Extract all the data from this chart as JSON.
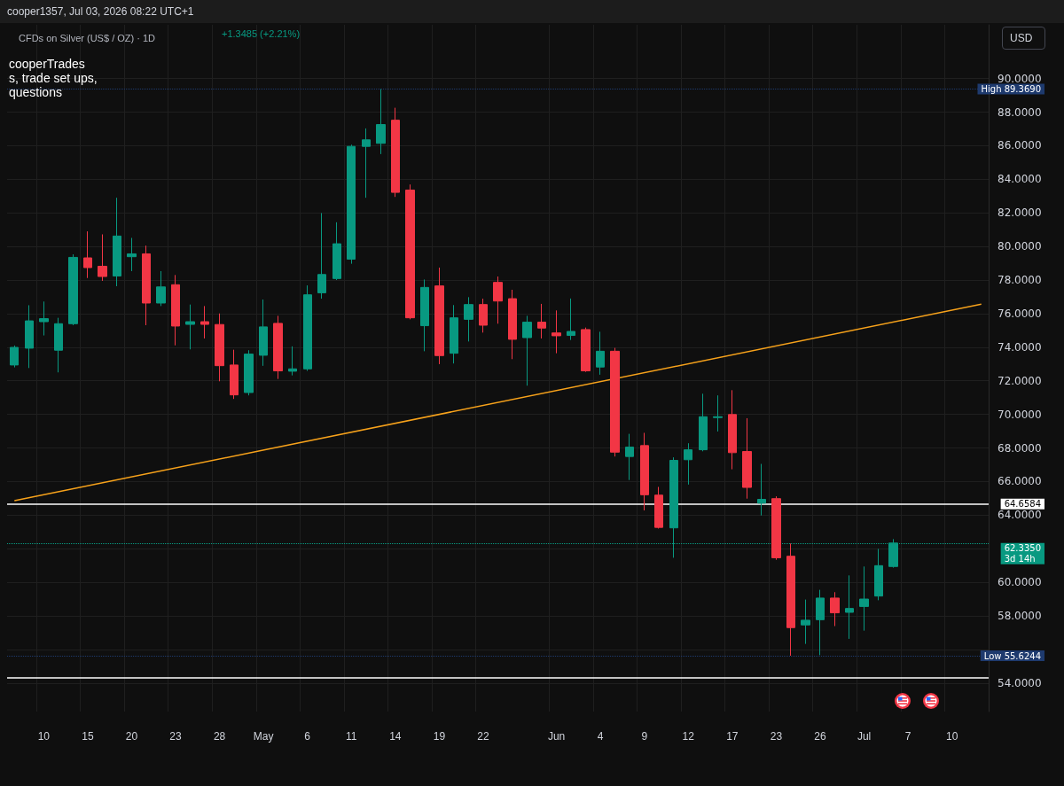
{
  "chart_data": {
    "type": "candlestick",
    "title": "CFDs on Silver (US$ / OZ) · 1D",
    "annotations": [
      "cooper1357, Jul 03, 2026 08:22 UTC+1",
      "+1.3485 (+2.21%)",
      "cooperTrades",
      "s, trade set ups,",
      "questions",
      "USD"
    ],
    "categories": [
      null,
      null,
      "10",
      null,
      null,
      "15",
      null,
      null,
      "20",
      null,
      null,
      "23",
      null,
      null,
      "28",
      null,
      null,
      "May",
      null,
      null,
      "6",
      null,
      null,
      "11",
      null,
      null,
      "14",
      null,
      null,
      "19",
      null,
      null,
      "22",
      null,
      null,
      null,
      null,
      "Jun",
      null,
      null,
      "4",
      null,
      null,
      "9",
      null,
      null,
      "12",
      null,
      null,
      "17",
      null,
      null,
      "23",
      null,
      null,
      "26",
      null,
      null,
      "Jul",
      null,
      null,
      "7",
      null,
      null,
      "10",
      null,
      null
    ],
    "series": [
      {
        "type": "candlestick",
        "ohlc": [
          [
            72.94,
            74.1,
            72.8,
            73.99
          ],
          [
            73.94,
            76.5,
            72.76,
            75.57
          ],
          [
            75.52,
            76.72,
            74.7,
            75.7
          ],
          [
            73.82,
            75.75,
            72.5,
            75.4
          ],
          [
            75.4,
            79.53,
            75.31,
            79.35
          ],
          [
            79.32,
            80.9,
            78.12,
            78.74
          ],
          [
            78.82,
            80.72,
            77.95,
            78.21
          ],
          [
            78.24,
            82.9,
            77.63,
            80.62
          ],
          [
            79.39,
            80.51,
            78.53,
            79.56
          ],
          [
            79.56,
            80.05,
            75.31,
            76.63
          ],
          [
            76.63,
            78.53,
            76.45,
            77.59
          ],
          [
            77.72,
            78.3,
            74.11,
            75.26
          ],
          [
            75.36,
            76.54,
            73.87,
            75.52
          ],
          [
            75.52,
            76.45,
            74.52,
            75.36
          ],
          [
            75.35,
            76.01,
            71.97,
            72.9
          ],
          [
            72.94,
            73.85,
            70.92,
            71.16
          ],
          [
            71.3,
            73.82,
            71.13,
            73.59
          ],
          [
            73.52,
            76.84,
            72.89,
            75.21
          ],
          [
            75.42,
            75.87,
            72.11,
            72.59
          ],
          [
            72.57,
            74.05,
            72.32,
            72.71
          ],
          [
            72.71,
            77.68,
            72.59,
            77.12
          ],
          [
            77.24,
            81.99,
            76.89,
            78.33
          ],
          [
            78.09,
            81.44,
            78.0,
            80.16
          ],
          [
            79.24,
            86.06,
            78.97,
            85.96
          ],
          [
            85.96,
            87.03,
            82.9,
            86.35
          ],
          [
            86.14,
            89.369,
            85.5,
            87.26
          ],
          [
            87.52,
            88.26,
            82.95,
            83.22
          ],
          [
            83.36,
            83.69,
            75.66,
            75.75
          ],
          [
            75.28,
            78.03,
            73.76,
            77.56
          ],
          [
            77.65,
            78.74,
            72.99,
            73.5
          ],
          [
            73.64,
            76.51,
            73.03,
            75.75
          ],
          [
            75.66,
            76.98,
            74.34,
            76.54
          ],
          [
            76.54,
            76.89,
            74.87,
            75.31
          ],
          [
            77.86,
            78.21,
            75.4,
            76.75
          ],
          [
            76.89,
            77.42,
            73.29,
            74.47
          ],
          [
            74.57,
            75.87,
            71.71,
            75.49
          ],
          [
            75.49,
            76.58,
            74.52,
            75.14
          ],
          [
            74.85,
            76.19,
            73.64,
            74.68
          ],
          [
            74.7,
            76.9,
            74.43,
            74.94
          ],
          [
            75.05,
            75.17,
            72.53,
            72.59
          ],
          [
            72.82,
            74.92,
            72.36,
            73.76
          ],
          [
            73.76,
            73.96,
            67.49,
            67.75
          ],
          [
            67.49,
            68.84,
            66.09,
            68.05
          ],
          [
            68.14,
            68.9,
            64.28,
            65.21
          ],
          [
            65.19,
            65.68,
            63.2,
            63.27
          ],
          [
            63.24,
            67.44,
            61.46,
            67.26
          ],
          [
            67.3,
            68.28,
            65.82,
            67.89
          ],
          [
            67.89,
            71.23,
            67.8,
            69.86
          ],
          [
            69.81,
            71.13,
            68.98,
            69.86
          ],
          [
            69.99,
            71.44,
            66.73,
            67.72
          ],
          [
            67.79,
            69.77,
            64.98,
            65.65
          ],
          [
            64.71,
            67.05,
            63.98,
            64.94
          ],
          [
            64.98,
            65.12,
            61.34,
            61.46
          ],
          [
            61.55,
            62.31,
            55.6244,
            57.3
          ],
          [
            57.46,
            58.97,
            56.33,
            57.74
          ],
          [
            57.77,
            59.55,
            55.66,
            59.06
          ],
          [
            59.06,
            59.41,
            57.39,
            58.18
          ],
          [
            58.21,
            60.41,
            56.63,
            58.44
          ],
          [
            58.56,
            60.94,
            57.12,
            59.0
          ],
          [
            59.18,
            61.99,
            58.93,
            60.99
          ],
          [
            60.94,
            62.57,
            60.87,
            62.335
          ],
          null,
          null,
          null,
          null,
          null,
          null
        ],
        "colors": [
          "#089981",
          "#089981",
          "#089981",
          "#089981",
          "#089981",
          "#f23645",
          "#f23645",
          "#089981",
          "#089981",
          "#f23645",
          "#089981",
          "#f23645",
          "#089981",
          "#f23645",
          "#f23645",
          "#f23645",
          "#089981",
          "#089981",
          "#f23645",
          "#089981",
          "#089981",
          "#089981",
          "#089981",
          "#089981",
          "#089981",
          "#089981",
          "#f23645",
          "#f23645",
          "#089981",
          "#f23645",
          "#089981",
          "#089981",
          "#f23645",
          "#f23645",
          "#f23645",
          "#089981",
          "#f23645",
          "#f23645",
          "#089981",
          "#f23645",
          "#089981",
          "#f23645",
          "#089981",
          "#f23645",
          "#f23645",
          "#089981",
          "#089981",
          "#089981",
          "#089981",
          "#f23645",
          "#f23645",
          "#089981",
          "#f23645",
          "#f23645",
          "#089981",
          "#089981",
          "#f23645",
          "#089981",
          "#089981",
          "#089981",
          "#089981",
          null,
          null,
          null,
          null,
          null,
          null
        ]
      },
      {
        "type": "line",
        "color": "#f7a21b",
        "values": [
          64.86,
          null,
          null,
          null,
          null,
          null,
          null,
          null,
          null,
          null,
          null,
          null,
          null,
          null,
          null,
          null,
          null,
          null,
          null,
          null,
          null,
          null,
          null,
          null,
          null,
          null,
          null,
          null,
          null,
          null,
          null,
          null,
          null,
          null,
          null,
          null,
          null,
          null,
          null,
          null,
          null,
          null,
          null,
          null,
          null,
          null,
          null,
          null,
          null,
          null,
          null,
          null,
          null,
          null,
          null,
          null,
          null,
          null,
          null,
          null,
          null,
          null,
          null,
          null,
          null,
          null,
          76.56
        ]
      }
    ],
    "ylim": [
      52.3,
      93.2
    ],
    "yticks": [
      {
        "value": 54,
        "label": "54.0000"
      },
      {
        "value": 56,
        "label": null
      },
      {
        "value": 58,
        "label": "58.0000"
      },
      {
        "value": 60,
        "label": "60.0000"
      },
      {
        "value": 62,
        "label": null
      },
      {
        "value": 64,
        "label": "64.0000"
      },
      {
        "value": 66,
        "label": "66.0000"
      },
      {
        "value": 68,
        "label": "68.0000"
      },
      {
        "value": 70,
        "label": "70.0000"
      },
      {
        "value": 72,
        "label": "72.0000"
      },
      {
        "value": 74,
        "label": "74.0000"
      },
      {
        "value": 76,
        "label": "76.0000"
      },
      {
        "value": 78,
        "label": "78.0000"
      },
      {
        "value": 80,
        "label": "80.0000"
      },
      {
        "value": 82,
        "label": "82.0000"
      },
      {
        "value": 84,
        "label": "84.0000"
      },
      {
        "value": 86,
        "label": "86.0000"
      },
      {
        "value": 88,
        "label": "88.0000"
      },
      {
        "value": 90,
        "label": "90.0000"
      }
    ],
    "ref_lines": [
      {
        "axis": "y",
        "value": 89.369,
        "label": "High 89.3690",
        "line_style": "dotted",
        "color": "#1e3a6e"
      },
      {
        "axis": "y",
        "value": 64.6584,
        "label": "64.6584",
        "color": "#ffffff",
        "line_style": "solid"
      },
      {
        "axis": "y",
        "value": 62.335,
        "label": "62.3350\n3d 14h",
        "line_style": "dotted",
        "color": "#089981"
      },
      {
        "axis": "y",
        "value": 55.6244,
        "label": "Low 55.6244",
        "line_style": "dotted",
        "color": "#1e3a6e"
      },
      {
        "axis": "y",
        "value": 54.3,
        "color": "#ffffff",
        "line_style": "solid"
      }
    ],
    "grid": true
  }
}
